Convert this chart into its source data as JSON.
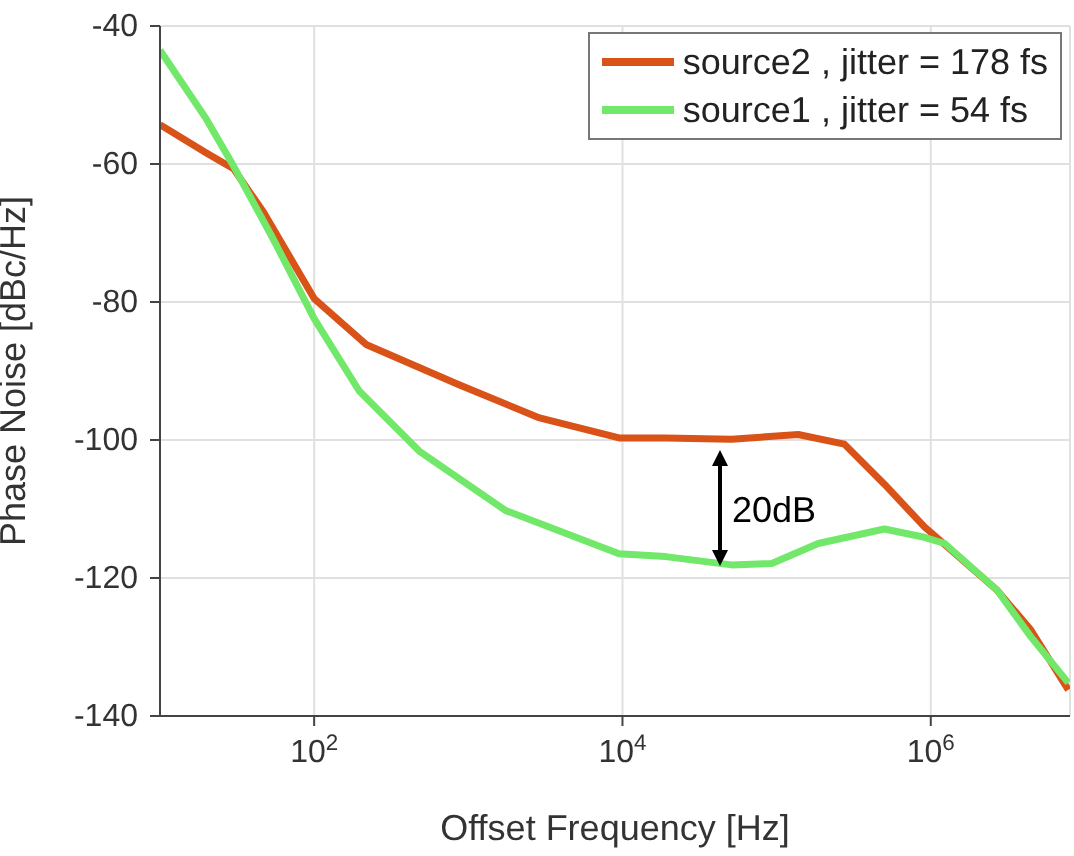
{
  "chart_data": {
    "type": "line",
    "xlabel": "Offset Frequency [Hz]",
    "ylabel": "Phase Noise [dBc/Hz]",
    "log": "x",
    "grid": true,
    "legend": "top right",
    "line_style": "solid",
    "marker": "none",
    "xlim": [
      10,
      8000000
    ],
    "xticks": [
      {
        "value": 100,
        "label": "10$^{2}$"
      },
      {
        "value": 10000,
        "label": "10$^{4}$"
      },
      {
        "value": 1000000,
        "label": "10$^{6}$"
      }
    ],
    "ylim": [
      -140,
      -40
    ],
    "yticks": [
      -140,
      -120,
      -100,
      -80,
      -60,
      -40
    ],
    "annotations": [
      "20dB"
    ],
    "series": [
      {
        "name": "source2 , jitter = 178 fs",
        "color": "#d95319",
        "x": [
          10,
          20,
          30,
          47,
          100,
          219,
          870,
          2900,
          9500,
          19000,
          51000,
          138000,
          275000,
          500000,
          910000,
          2700000,
          4450000,
          7800000
        ],
        "values": [
          -54.3,
          -58.4,
          -60.7,
          -67,
          -79.5,
          -86.2,
          -92,
          -96.8,
          -99.7,
          -99.7,
          -99.9,
          -99.2,
          -100.6,
          -106.4,
          -112.6,
          -121.8,
          -127.5,
          -136.2
        ]
      },
      {
        "name": "source1 , jitter = 54 fs",
        "color": "#72e86a",
        "x": [
          10,
          20,
          30,
          54,
          100,
          196,
          480,
          1740,
          9500,
          19000,
          51000,
          93000,
          186000,
          500000,
          910000,
          1230000,
          2700000,
          4450000,
          7800000
        ],
        "values": [
          -43.5,
          -53.5,
          -60.3,
          -70.8,
          -82.4,
          -92.9,
          -101.6,
          -110.2,
          -116.5,
          -116.9,
          -118.1,
          -117.9,
          -115,
          -112.9,
          -114.1,
          -115,
          -121.8,
          -128.5,
          -135.2
        ]
      }
    ]
  }
}
